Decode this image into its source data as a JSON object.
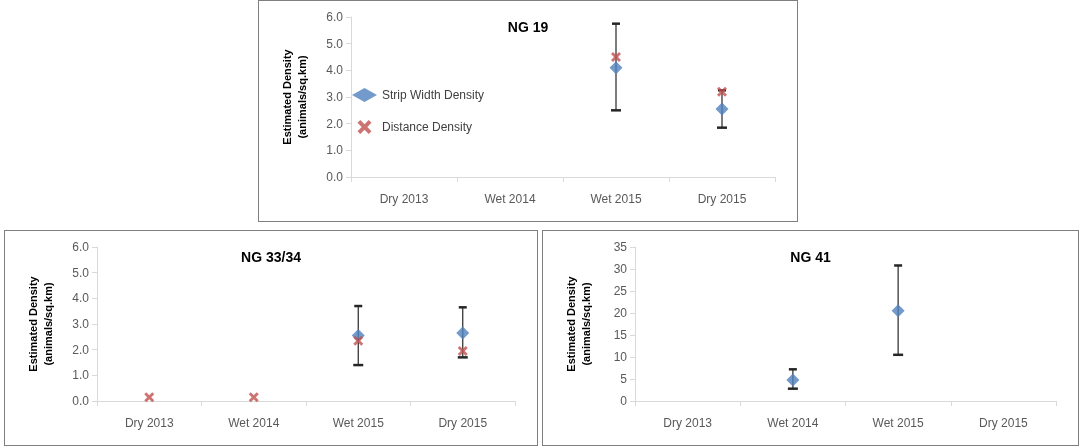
{
  "chart_data": [
    {
      "type": "scatter",
      "title": "NG 19",
      "ylabel": "Estimated Density\n(animals/sq.km)",
      "categories": [
        "Dry 2013",
        "Wet 2014",
        "Wet 2015",
        "Dry 2015"
      ],
      "ylim": [
        0,
        6
      ],
      "yticks": [
        {
          "value": 0,
          "label": "0.0"
        },
        {
          "value": 1,
          "label": "1.0"
        },
        {
          "value": 2,
          "label": "2.0"
        },
        {
          "value": 3,
          "label": "3.0"
        },
        {
          "value": 4,
          "label": "4.0"
        },
        {
          "value": 5,
          "label": "5.0"
        },
        {
          "value": 6,
          "label": "6.0"
        }
      ],
      "grid": false,
      "legend": "left",
      "series": [
        {
          "name": "Strip Width Density",
          "color": "#4f81bd",
          "marker": "diamond",
          "values": [
            null,
            null,
            4.1,
            2.55
          ],
          "errors": [
            null,
            null,
            [
              2.5,
              5.75
            ],
            [
              1.85,
              3.25
            ]
          ]
        },
        {
          "name": "Distance Density",
          "color": "#c0504d",
          "marker": "cross",
          "values": [
            null,
            null,
            4.5,
            3.2
          ]
        }
      ]
    },
    {
      "type": "scatter",
      "title": "NG 33/34",
      "ylabel": "Estimated Density\n(animals/sq.km)",
      "categories": [
        "Dry 2013",
        "Wet 2014",
        "Wet 2015",
        "Dry 2015"
      ],
      "ylim": [
        0,
        6
      ],
      "yticks": [
        {
          "value": 0,
          "label": "0.0"
        },
        {
          "value": 1,
          "label": "1.0"
        },
        {
          "value": 2,
          "label": "2.0"
        },
        {
          "value": 3,
          "label": "3.0"
        },
        {
          "value": 4,
          "label": "4.0"
        },
        {
          "value": 5,
          "label": "5.0"
        },
        {
          "value": 6,
          "label": "6.0"
        }
      ],
      "grid": false,
      "legend": false,
      "series": [
        {
          "color": "#4f81bd",
          "marker": "diamond",
          "values": [
            null,
            null,
            2.55,
            2.65
          ],
          "errors": [
            null,
            null,
            [
              1.4,
              3.7
            ],
            [
              1.7,
              3.65
            ]
          ]
        },
        {
          "color": "#c0504d",
          "marker": "cross",
          "values": [
            0.15,
            0.15,
            2.35,
            1.95
          ]
        }
      ]
    },
    {
      "type": "scatter",
      "title": "NG 41",
      "ylabel": "Estimated Density\n(animals/sq.km)",
      "categories": [
        "Dry 2013",
        "Wet 2014",
        "Wet 2015",
        "Dry 2015"
      ],
      "ylim": [
        0,
        35
      ],
      "yticks": [
        0,
        5,
        10,
        15,
        20,
        25,
        30,
        35
      ],
      "grid": false,
      "legend": false,
      "series": [
        {
          "color": "#4f81bd",
          "marker": "diamond",
          "values": [
            null,
            4.8,
            20.5,
            null
          ],
          "errors": [
            null,
            [
              2.8,
              7.2
            ],
            [
              10.5,
              30.8
            ],
            null
          ]
        }
      ]
    }
  ]
}
